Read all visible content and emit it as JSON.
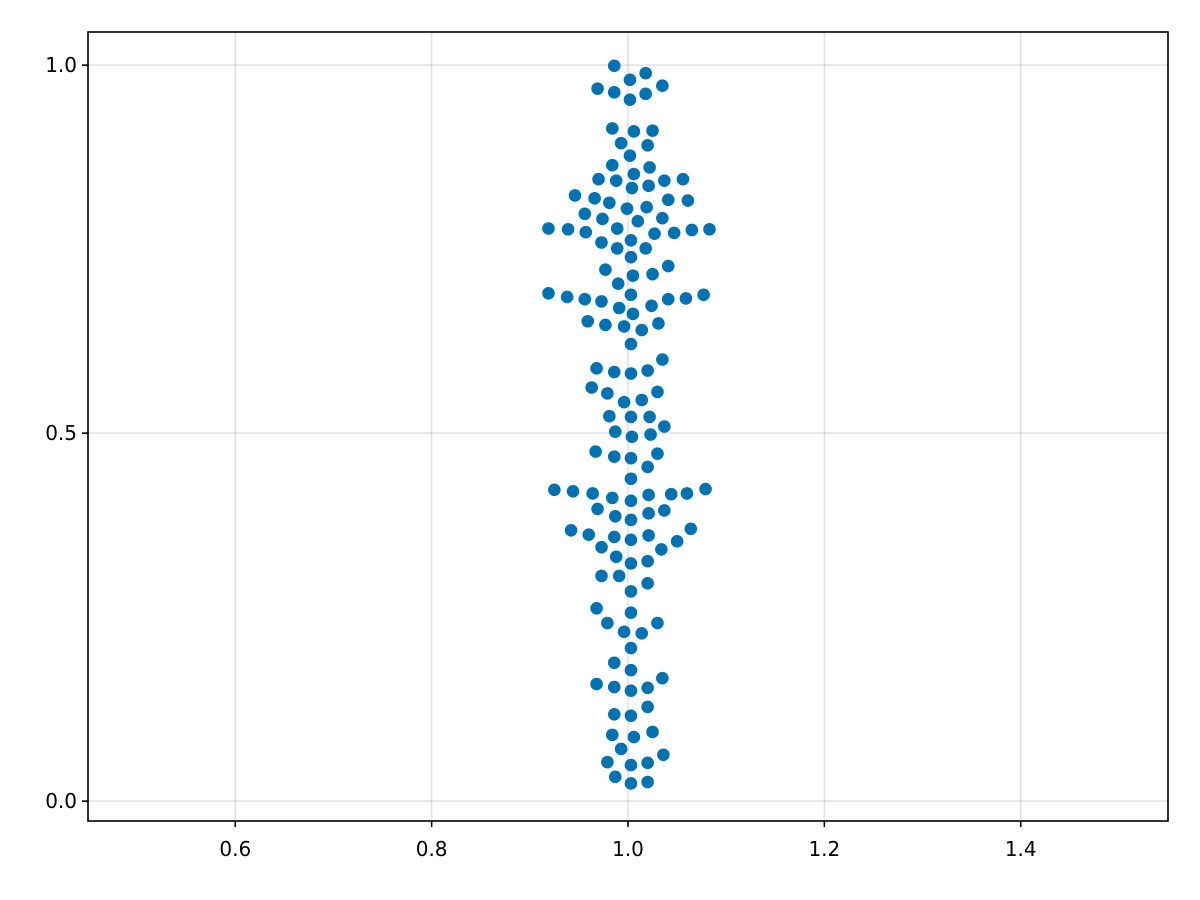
{
  "chart_data": {
    "type": "scatter",
    "title": "",
    "xlabel": "",
    "ylabel": "",
    "xlim": [
      0.45,
      1.55
    ],
    "ylim": [
      -0.027,
      1.045
    ],
    "xticks": [
      0.6,
      0.8,
      1.0,
      1.2,
      1.4
    ],
    "xtick_labels": [
      "0.6",
      "0.8",
      "1.0",
      "1.2",
      "1.4"
    ],
    "yticks": [
      0.0,
      0.5,
      1.0
    ],
    "ytick_labels": [
      "0.0",
      "0.5",
      "1.0"
    ],
    "grid": true,
    "legend": "none",
    "marker_color": "#0072b2",
    "series": [
      {
        "points": [
          [
            0.986,
            0.999
          ],
          [
            0.986,
            0.963
          ],
          [
            1.002,
            0.98
          ],
          [
            1.018,
            0.989
          ],
          [
            1.018,
            0.961
          ],
          [
            1.035,
            0.972
          ],
          [
            0.969,
            0.968
          ],
          [
            1.002,
            0.953
          ],
          [
            0.984,
            0.914
          ],
          [
            1.006,
            0.91
          ],
          [
            1.025,
            0.911
          ],
          [
            0.993,
            0.894
          ],
          [
            1.02,
            0.891
          ],
          [
            1.002,
            0.877
          ],
          [
            0.984,
            0.864
          ],
          [
            1.022,
            0.861
          ],
          [
            0.97,
            0.845
          ],
          [
            0.988,
            0.843
          ],
          [
            1.006,
            0.852
          ],
          [
            1.021,
            0.836
          ],
          [
            1.004,
            0.833
          ],
          [
            1.037,
            0.843
          ],
          [
            1.056,
            0.845
          ],
          [
            0.946,
            0.823
          ],
          [
            0.966,
            0.819
          ],
          [
            0.981,
            0.813
          ],
          [
            0.999,
            0.805
          ],
          [
            1.019,
            0.807
          ],
          [
            1.041,
            0.817
          ],
          [
            1.061,
            0.816
          ],
          [
            0.956,
            0.798
          ],
          [
            0.974,
            0.791
          ],
          [
            0.989,
            0.778
          ],
          [
            1.01,
            0.788
          ],
          [
            1.035,
            0.792
          ],
          [
            0.919,
            0.778
          ],
          [
            0.939,
            0.777
          ],
          [
            0.957,
            0.773
          ],
          [
            0.973,
            0.759
          ],
          [
            0.989,
            0.751
          ],
          [
            1.003,
            0.762
          ],
          [
            1.018,
            0.751
          ],
          [
            1.027,
            0.771
          ],
          [
            1.047,
            0.772
          ],
          [
            1.065,
            0.776
          ],
          [
            1.083,
            0.777
          ],
          [
            1.003,
            0.739
          ],
          [
            0.977,
            0.722
          ],
          [
            0.99,
            0.703
          ],
          [
            1.005,
            0.714
          ],
          [
            1.025,
            0.716
          ],
          [
            1.041,
            0.727
          ],
          [
            0.919,
            0.69
          ],
          [
            0.938,
            0.685
          ],
          [
            0.956,
            0.682
          ],
          [
            0.973,
            0.679
          ],
          [
            0.991,
            0.67
          ],
          [
            1.003,
            0.688
          ],
          [
            1.005,
            0.662
          ],
          [
            1.024,
            0.673
          ],
          [
            1.041,
            0.682
          ],
          [
            1.059,
            0.683
          ],
          [
            1.077,
            0.688
          ],
          [
            0.959,
            0.652
          ],
          [
            0.977,
            0.647
          ],
          [
            0.996,
            0.645
          ],
          [
            1.014,
            0.64
          ],
          [
            1.031,
            0.649
          ],
          [
            1.003,
            0.621
          ],
          [
            0.968,
            0.588
          ],
          [
            0.986,
            0.583
          ],
          [
            1.003,
            0.581
          ],
          [
            1.02,
            0.585
          ],
          [
            1.035,
            0.6
          ],
          [
            0.963,
            0.562
          ],
          [
            0.979,
            0.554
          ],
          [
            0.996,
            0.542
          ],
          [
            1.014,
            0.545
          ],
          [
            1.03,
            0.556
          ],
          [
            0.981,
            0.523
          ],
          [
            1.003,
            0.522
          ],
          [
            1.022,
            0.522
          ],
          [
            0.987,
            0.502
          ],
          [
            1.004,
            0.495
          ],
          [
            1.023,
            0.498
          ],
          [
            1.037,
            0.509
          ],
          [
            0.967,
            0.475
          ],
          [
            0.986,
            0.468
          ],
          [
            1.003,
            0.466
          ],
          [
            1.02,
            0.454
          ],
          [
            1.03,
            0.472
          ],
          [
            1.003,
            0.438
          ],
          [
            0.925,
            0.423
          ],
          [
            0.944,
            0.421
          ],
          [
            0.964,
            0.418
          ],
          [
            0.984,
            0.412
          ],
          [
            1.003,
            0.408
          ],
          [
            1.021,
            0.416
          ],
          [
            1.044,
            0.417
          ],
          [
            1.06,
            0.418
          ],
          [
            1.079,
            0.424
          ],
          [
            0.969,
            0.397
          ],
          [
            0.987,
            0.387
          ],
          [
            1.003,
            0.382
          ],
          [
            1.021,
            0.391
          ],
          [
            1.037,
            0.395
          ],
          [
            0.942,
            0.368
          ],
          [
            0.96,
            0.362
          ],
          [
            0.986,
            0.359
          ],
          [
            1.003,
            0.355
          ],
          [
            1.021,
            0.361
          ],
          [
            1.034,
            0.342
          ],
          [
            1.05,
            0.353
          ],
          [
            1.064,
            0.37
          ],
          [
            0.973,
            0.345
          ],
          [
            0.988,
            0.332
          ],
          [
            1.003,
            0.323
          ],
          [
            1.02,
            0.326
          ],
          [
            0.973,
            0.306
          ],
          [
            0.991,
            0.306
          ],
          [
            1.003,
            0.285
          ],
          [
            1.02,
            0.296
          ],
          [
            0.968,
            0.262
          ],
          [
            1.003,
            0.256
          ],
          [
            0.979,
            0.242
          ],
          [
            0.996,
            0.23
          ],
          [
            1.014,
            0.228
          ],
          [
            1.03,
            0.242
          ],
          [
            1.003,
            0.208
          ],
          [
            0.986,
            0.188
          ],
          [
            1.003,
            0.178
          ],
          [
            0.968,
            0.159
          ],
          [
            0.986,
            0.155
          ],
          [
            1.003,
            0.15
          ],
          [
            1.02,
            0.154
          ],
          [
            1.035,
            0.167
          ],
          [
            0.986,
            0.118
          ],
          [
            1.003,
            0.116
          ],
          [
            1.02,
            0.128
          ],
          [
            0.984,
            0.09
          ],
          [
            1.006,
            0.087
          ],
          [
            1.025,
            0.094
          ],
          [
            0.993,
            0.071
          ],
          [
            0.979,
            0.053
          ],
          [
            1.003,
            0.049
          ],
          [
            1.02,
            0.052
          ],
          [
            1.036,
            0.063
          ],
          [
            0.987,
            0.033
          ],
          [
            1.003,
            0.024
          ],
          [
            1.02,
            0.026
          ]
        ]
      }
    ]
  }
}
